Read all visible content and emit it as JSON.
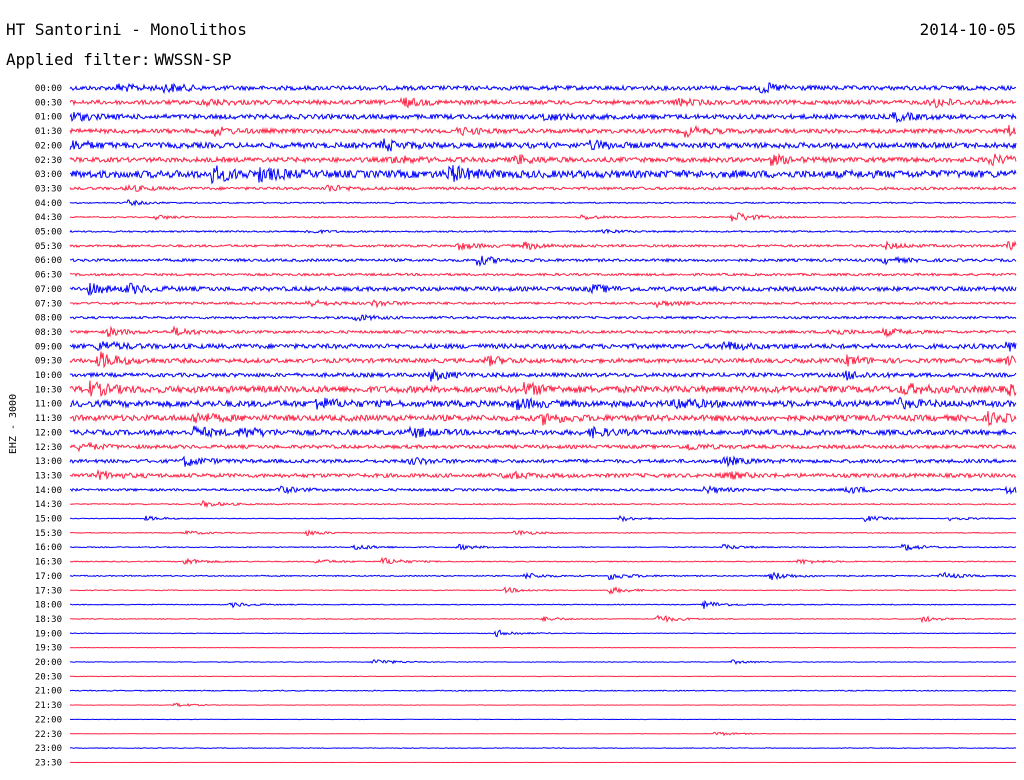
{
  "header": {
    "station": "HT Santorini - Monolithos",
    "date": "2014-10-05",
    "filter_label": "Applied filter:",
    "filter_value": "WWSSN-SP"
  },
  "chart_data": {
    "type": "line",
    "title": "HT Santorini - Monolithos",
    "ylabel": "EHZ - 3000",
    "xlabel": "",
    "grid": false,
    "legend": "none",
    "colors": [
      "#0000ff",
      "#ff2244"
    ],
    "rows": [
      {
        "label": "00:00",
        "noise": 0.55,
        "events": [
          [
            0.05,
            0.9
          ],
          [
            0.1,
            1.0
          ],
          [
            0.73,
            1.2
          ]
        ]
      },
      {
        "label": "00:30",
        "noise": 0.55,
        "events": [
          [
            0.14,
            0.9
          ],
          [
            0.35,
            1.1
          ],
          [
            0.64,
            0.8
          ],
          [
            0.91,
            1.3
          ]
        ]
      },
      {
        "label": "01:00",
        "noise": 0.6,
        "events": [
          [
            0.0,
            1.0
          ],
          [
            0.5,
            0.9
          ],
          [
            0.87,
            1.0
          ]
        ]
      },
      {
        "label": "01:30",
        "noise": 0.55,
        "events": [
          [
            0.15,
            1.0
          ],
          [
            0.41,
            0.9
          ],
          [
            0.65,
            1.2
          ],
          [
            0.99,
            1.3
          ]
        ]
      },
      {
        "label": "02:00",
        "noise": 0.7,
        "events": [
          [
            0.0,
            1.1
          ],
          [
            0.33,
            1.3
          ],
          [
            0.55,
            1.0
          ]
        ]
      },
      {
        "label": "02:30",
        "noise": 0.6,
        "events": [
          [
            0.34,
            1.0
          ],
          [
            0.47,
            1.1
          ],
          [
            0.74,
            1.1
          ],
          [
            0.97,
            1.4
          ]
        ]
      },
      {
        "label": "03:00",
        "noise": 0.95,
        "events": [
          [
            0.15,
            1.8
          ],
          [
            0.2,
            1.4
          ],
          [
            0.4,
            2.0
          ]
        ]
      },
      {
        "label": "03:30",
        "noise": 0.35,
        "events": [
          [
            0.06,
            0.8
          ],
          [
            0.27,
            1.0
          ]
        ]
      },
      {
        "label": "04:00",
        "noise": 0.15,
        "events": [
          [
            0.06,
            0.7
          ]
        ]
      },
      {
        "label": "04:30",
        "noise": 0.15,
        "events": [
          [
            0.09,
            0.6
          ],
          [
            0.54,
            0.7
          ],
          [
            0.7,
            1.6
          ]
        ]
      },
      {
        "label": "05:00",
        "noise": 0.2,
        "events": [
          [
            0.25,
            0.5
          ],
          [
            0.56,
            0.6
          ]
        ]
      },
      {
        "label": "05:30",
        "noise": 0.3,
        "events": [
          [
            0.41,
            0.9
          ],
          [
            0.48,
            0.9
          ],
          [
            0.86,
            0.9
          ],
          [
            0.99,
            1.4
          ]
        ]
      },
      {
        "label": "06:00",
        "noise": 0.35,
        "events": [
          [
            0.43,
            1.2
          ],
          [
            0.86,
            0.8
          ]
        ]
      },
      {
        "label": "06:30",
        "noise": 0.3,
        "events": []
      },
      {
        "label": "07:00",
        "noise": 0.55,
        "events": [
          [
            0.02,
            1.2
          ],
          [
            0.06,
            1.1
          ],
          [
            0.55,
            0.9
          ]
        ]
      },
      {
        "label": "07:30",
        "noise": 0.3,
        "events": [
          [
            0.25,
            0.9
          ],
          [
            0.32,
            0.8
          ],
          [
            0.62,
            0.8
          ]
        ]
      },
      {
        "label": "08:00",
        "noise": 0.3,
        "events": [
          [
            0.3,
            0.8
          ]
        ]
      },
      {
        "label": "08:30",
        "noise": 0.35,
        "events": [
          [
            0.04,
            1.0
          ],
          [
            0.11,
            1.0
          ],
          [
            0.8,
            0.9
          ],
          [
            0.86,
            0.9
          ]
        ]
      },
      {
        "label": "09:00",
        "noise": 0.6,
        "events": [
          [
            0.03,
            1.2
          ],
          [
            0.69,
            1.1
          ],
          [
            0.99,
            1.1
          ]
        ]
      },
      {
        "label": "09:30",
        "noise": 0.55,
        "events": [
          [
            0.03,
            2.2
          ],
          [
            0.44,
            1.1
          ],
          [
            0.82,
            1.2
          ],
          [
            0.99,
            1.0
          ]
        ]
      },
      {
        "label": "10:00",
        "noise": 0.5,
        "events": [
          [
            0.38,
            1.3
          ],
          [
            0.82,
            1.1
          ]
        ]
      },
      {
        "label": "10:30",
        "noise": 0.85,
        "events": [
          [
            0.02,
            1.6
          ],
          [
            0.48,
            1.3
          ],
          [
            0.88,
            1.2
          ],
          [
            0.99,
            1.2
          ]
        ]
      },
      {
        "label": "11:00",
        "noise": 0.8,
        "events": [
          [
            0.26,
            1.3
          ],
          [
            0.47,
            1.2
          ],
          [
            0.64,
            1.3
          ],
          [
            0.87,
            1.2
          ]
        ]
      },
      {
        "label": "11:30",
        "noise": 0.75,
        "events": [
          [
            0.13,
            1.2
          ],
          [
            0.5,
            1.2
          ],
          [
            0.97,
            1.2
          ]
        ]
      },
      {
        "label": "12:00",
        "noise": 0.65,
        "events": [
          [
            0.13,
            1.3
          ],
          [
            0.18,
            1.2
          ],
          [
            0.36,
            1.2
          ],
          [
            0.55,
            1.1
          ]
        ]
      },
      {
        "label": "12:30",
        "noise": 0.45,
        "events": [
          [
            0.01,
            1.0
          ],
          [
            0.65,
            0.9
          ]
        ]
      },
      {
        "label": "13:00",
        "noise": 0.45,
        "events": [
          [
            0.12,
            1.2
          ],
          [
            0.36,
            0.9
          ],
          [
            0.69,
            1.1
          ]
        ]
      },
      {
        "label": "13:30",
        "noise": 0.5,
        "events": [
          [
            0.03,
            1.0
          ],
          [
            0.46,
            1.0
          ],
          [
            0.69,
            1.0
          ]
        ]
      },
      {
        "label": "14:00",
        "noise": 0.3,
        "events": [
          [
            0.22,
            0.9
          ],
          [
            0.67,
            0.9
          ],
          [
            0.82,
            1.0
          ],
          [
            0.99,
            1.0
          ]
        ]
      },
      {
        "label": "14:30",
        "noise": 0.15,
        "events": [
          [
            0.14,
            0.8
          ]
        ]
      },
      {
        "label": "15:00",
        "noise": 0.08,
        "events": [
          [
            0.08,
            0.6
          ],
          [
            0.58,
            0.7
          ],
          [
            0.84,
            0.8
          ],
          [
            0.93,
            0.6
          ]
        ]
      },
      {
        "label": "15:30",
        "noise": 0.1,
        "events": [
          [
            0.12,
            0.6
          ],
          [
            0.25,
            0.7
          ],
          [
            0.47,
            0.8
          ]
        ]
      },
      {
        "label": "16:00",
        "noise": 0.12,
        "events": [
          [
            0.3,
            0.8
          ],
          [
            0.41,
            0.7
          ],
          [
            0.69,
            0.7
          ],
          [
            0.88,
            1.0
          ]
        ]
      },
      {
        "label": "16:30",
        "noise": 0.12,
        "events": [
          [
            0.12,
            0.9
          ],
          [
            0.26,
            0.6
          ],
          [
            0.33,
            1.0
          ],
          [
            0.77,
            0.7
          ]
        ]
      },
      {
        "label": "17:00",
        "noise": 0.15,
        "events": [
          [
            0.48,
            0.8
          ],
          [
            0.57,
            1.0
          ],
          [
            0.74,
            1.1
          ],
          [
            0.92,
            0.9
          ]
        ]
      },
      {
        "label": "17:30",
        "noise": 0.1,
        "events": [
          [
            0.46,
            0.7
          ],
          [
            0.57,
            0.9
          ]
        ]
      },
      {
        "label": "18:00",
        "noise": 0.1,
        "events": [
          [
            0.17,
            0.7
          ],
          [
            0.67,
            1.0
          ]
        ]
      },
      {
        "label": "18:30",
        "noise": 0.1,
        "events": [
          [
            0.5,
            0.6
          ],
          [
            0.62,
            1.1
          ],
          [
            0.9,
            0.8
          ]
        ]
      },
      {
        "label": "19:00",
        "noise": 0.08,
        "events": [
          [
            0.45,
            0.9
          ]
        ]
      },
      {
        "label": "19:30",
        "noise": 0.05,
        "events": []
      },
      {
        "label": "20:00",
        "noise": 0.07,
        "events": [
          [
            0.32,
            0.9
          ],
          [
            0.7,
            0.5
          ]
        ]
      },
      {
        "label": "20:30",
        "noise": 0.06,
        "events": []
      },
      {
        "label": "21:00",
        "noise": 0.12,
        "events": []
      },
      {
        "label": "21:30",
        "noise": 0.05,
        "events": [
          [
            0.11,
            0.5
          ]
        ]
      },
      {
        "label": "22:00",
        "noise": 0.05,
        "events": []
      },
      {
        "label": "22:30",
        "noise": 0.05,
        "events": [
          [
            0.68,
            0.6
          ]
        ]
      },
      {
        "label": "23:00",
        "noise": 0.08,
        "events": []
      },
      {
        "label": "23:30",
        "noise": 0.02,
        "events": []
      }
    ]
  }
}
